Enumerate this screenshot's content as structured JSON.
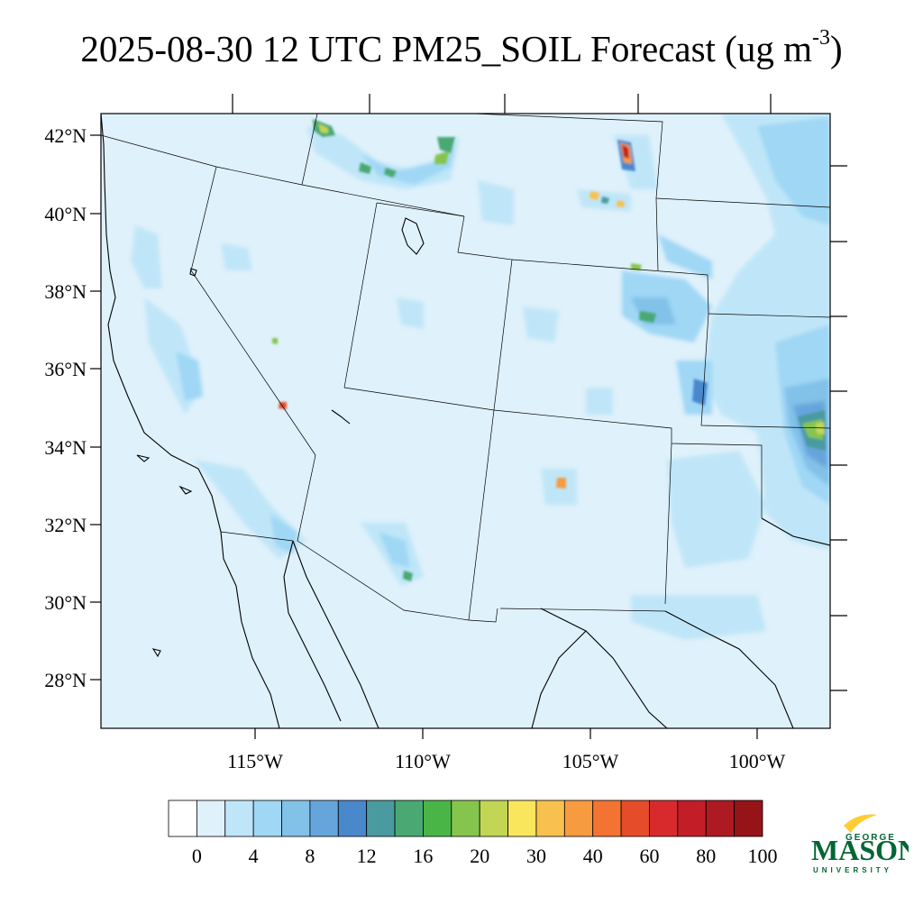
{
  "title": {
    "main": "2025-08-30 12 UTC PM25_SOIL Forecast (ug m",
    "exp": "-3",
    "close": ")"
  },
  "map": {
    "lat_labels": [
      "42°N",
      "40°N",
      "38°N",
      "36°N",
      "34°N",
      "32°N",
      "30°N",
      "28°N"
    ],
    "lon_labels": [
      "115°W",
      "110°W",
      "105°W",
      "100°W"
    ],
    "background_color": "#dff1fb"
  },
  "colorbar": {
    "colors": [
      "#ffffff",
      "#dff1fb",
      "#bfe6f8",
      "#9fd7f5",
      "#82c1e8",
      "#66a5dc",
      "#4a88cc",
      "#4a9ba0",
      "#4aa873",
      "#4ab547",
      "#86c54d",
      "#c2d554",
      "#f9e65c",
      "#f8c14e",
      "#f69b40",
      "#f37432",
      "#e54c2a",
      "#d82a2c",
      "#c31e28",
      "#ad1a22",
      "#961418"
    ],
    "labels": [
      "0",
      "4",
      "8",
      "12",
      "16",
      "20",
      "30",
      "40",
      "60",
      "80",
      "100"
    ]
  },
  "logo": {
    "top_text": "GEORGE",
    "main_text": "MASON",
    "bottom_text": "UNIVERSITY",
    "color": "#006633",
    "accent_color": "#ffcc33"
  }
}
